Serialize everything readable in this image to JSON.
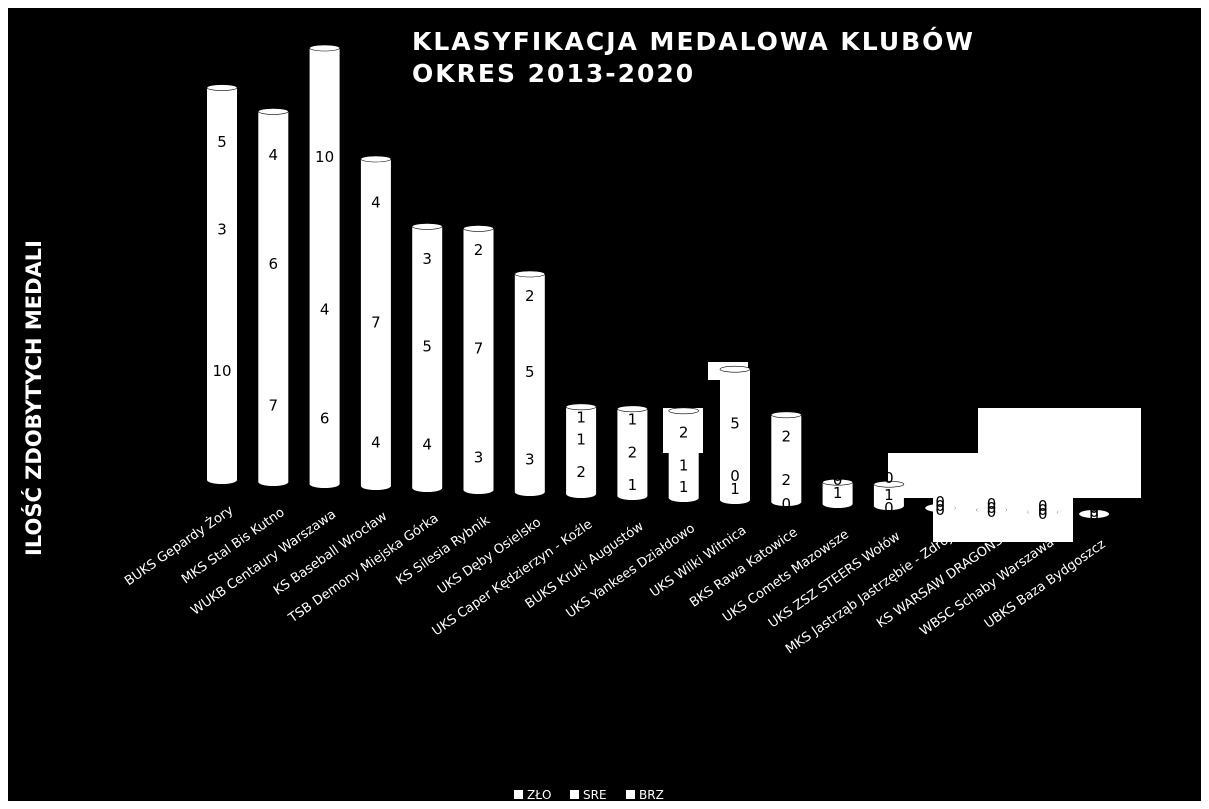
{
  "chart_data": {
    "type": "bar",
    "stacked": true,
    "title": "KLASYFIKACJA MEDALOWA KLUBÓW",
    "subtitle": "OKRES 2013-2020",
    "xlabel": "",
    "ylabel": "ILOŚĆ ZDOBYTYCH MEDALI",
    "legend_position": "bottom",
    "grid": false,
    "categories": [
      "BUKS Gepardy Żory",
      "MKS Stal Bis Kutno",
      "WUKB Centaury Warszawa",
      "KS Baseball Wrocław",
      "TSB Demony Miejska Górka",
      "KS Silesia Rybnik",
      "UKS Dęby Osielsko",
      "UKS Caper Kędzierzyn - Koźle",
      "BUKS Kruki Augustów",
      "UKS Yankees Działdowo",
      "UKS Wilki Witnica",
      "BKS Rawa Katowice",
      "UKS Comets Mazowsze",
      "UKS ZSZ STEERS Wołów",
      "MKS Jastrząb Jastrzębie - Zdrój",
      "KS WARSAW DRAGONS",
      "WBSC Schaby Warszawa",
      "UBKS Baza Bydgoszcz"
    ],
    "series": [
      {
        "name": "ZŁO",
        "color": "#ffffff",
        "values": [
          10,
          7,
          6,
          4,
          4,
          3,
          3,
          2,
          1,
          1,
          1,
          0,
          1,
          0,
          0,
          0,
          0,
          0
        ]
      },
      {
        "name": "SRE",
        "color": "#ffffff",
        "values": [
          3,
          6,
          4,
          7,
          5,
          7,
          5,
          1,
          2,
          1,
          0,
          2,
          0,
          1,
          0,
          0,
          0,
          0
        ]
      },
      {
        "name": "BRZ",
        "color": "#ffffff",
        "values": [
          5,
          4,
          10,
          4,
          3,
          2,
          2,
          1,
          1,
          2,
          5,
          2,
          0,
          0,
          0,
          0,
          0,
          0
        ]
      }
    ],
    "ylim": [
      0,
      20
    ]
  }
}
